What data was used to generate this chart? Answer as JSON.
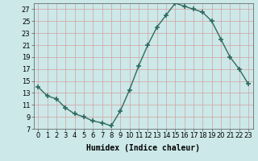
{
  "x": [
    0,
    1,
    2,
    3,
    4,
    5,
    6,
    7,
    8,
    9,
    10,
    11,
    12,
    13,
    14,
    15,
    16,
    17,
    18,
    19,
    20,
    21,
    22,
    23
  ],
  "y": [
    14.0,
    12.5,
    12.0,
    10.5,
    9.5,
    9.0,
    8.3,
    8.0,
    7.5,
    10.0,
    13.5,
    17.5,
    21.0,
    24.0,
    26.0,
    28.0,
    27.5,
    27.0,
    26.5,
    25.0,
    22.0,
    19.0,
    17.0,
    14.5
  ],
  "line_color": "#2e6b5e",
  "marker": "+",
  "marker_size": 4,
  "marker_lw": 1.2,
  "bg_color": "#cce8e8",
  "grid_color": "#d4a0a0",
  "xlabel": "Humidex (Indice chaleur)",
  "ylim": [
    7,
    28
  ],
  "xlim": [
    -0.5,
    23.5
  ],
  "yticks": [
    7,
    9,
    11,
    13,
    15,
    17,
    19,
    21,
    23,
    25,
    27
  ],
  "xticks": [
    0,
    1,
    2,
    3,
    4,
    5,
    6,
    7,
    8,
    9,
    10,
    11,
    12,
    13,
    14,
    15,
    16,
    17,
    18,
    19,
    20,
    21,
    22,
    23
  ],
  "xlabel_fontsize": 7,
  "tick_fontsize": 6,
  "linewidth": 1.0
}
